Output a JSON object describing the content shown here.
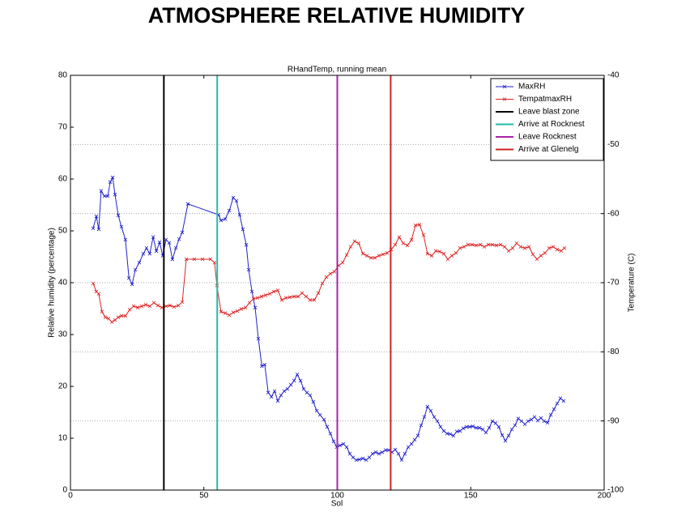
{
  "page_title": "ATMOSPHERE RELATIVE HUMIDITY",
  "chart_data": {
    "type": "line",
    "title": "RHandTemp, running mean",
    "x_label": "Sol",
    "y_label": "Relative humidity (percentage)",
    "y2_label": "Temperature (C)",
    "xlim": [
      0,
      200
    ],
    "xticks": [
      0,
      50,
      100,
      150,
      200
    ],
    "ylim": [
      0,
      80
    ],
    "yticks": [
      0,
      10,
      20,
      30,
      40,
      50,
      60,
      70,
      80
    ],
    "y2lim": [
      -100,
      -40
    ],
    "y2ticks": [
      -100,
      -90,
      -80,
      -70,
      -60,
      -50,
      -40
    ],
    "grid": "y2",
    "legend": "upper right",
    "series": [
      {
        "name": "MaxRH",
        "color": "#2222cc",
        "x": [
          8.5,
          9.7,
          10.6,
          11.5,
          12.7,
          14,
          14.9,
          15.8,
          16.7,
          17.9,
          19.1,
          20.6,
          21.9,
          23.1,
          24.3,
          25.8,
          27.3,
          28.5,
          29.7,
          31,
          32.2,
          33.4,
          34.6,
          35.8,
          37,
          38.2,
          39.5,
          40.7,
          41.9,
          44,
          55.5,
          56.4,
          58,
          59.5,
          61,
          62.2,
          63.4,
          64.6,
          65.9,
          66.8,
          68,
          69.2,
          70.4,
          71.7,
          72.8,
          74.1,
          75.3,
          76.5,
          77.7,
          78.9,
          80.1,
          81.3,
          82.6,
          83.8,
          85,
          86.2,
          87.4,
          88.6,
          89.8,
          91,
          92.3,
          93.5,
          95,
          96.2,
          97.4,
          98.6,
          99.8,
          101,
          102.3,
          103.5,
          104.7,
          105.9,
          107.1,
          108.3,
          109.6,
          110.8,
          112,
          113.2,
          114.4,
          115.6,
          116.8,
          118.1,
          119.3,
          120.5,
          121.7,
          122.9,
          124.1,
          125.3,
          126.6,
          127.8,
          129,
          130.2,
          131.4,
          132.6,
          133.8,
          135,
          136.3,
          137.5,
          138.7,
          139.9,
          141.1,
          142.3,
          143.5,
          144.8,
          146,
          147.2,
          148.4,
          149.6,
          150.8,
          152,
          153.3,
          154.5,
          155.7,
          156.9,
          158.1,
          159.3,
          160.5,
          161.8,
          163,
          164.2,
          165.4,
          166.6,
          167.8,
          169,
          170.3,
          171.5,
          172.7,
          173.9,
          175.1,
          176.3,
          177.5,
          178.8,
          180,
          181.2,
          182.4,
          183.6,
          184.8
        ],
        "values": [
          50.5,
          52.8,
          50.3,
          57.7,
          56.7,
          56.7,
          59.4,
          60.3,
          57,
          53,
          50.8,
          48.3,
          40.9,
          39.7,
          42.5,
          43.9,
          45.6,
          46.7,
          45.6,
          48.8,
          46.1,
          47.8,
          45.2,
          48.3,
          47.7,
          44.5,
          46.7,
          48.4,
          49.7,
          55.2,
          53.1,
          52,
          52.3,
          53.9,
          56.4,
          55.8,
          53.1,
          50.3,
          47.3,
          42.5,
          38.3,
          35.2,
          29.2,
          23.9,
          24.2,
          18.8,
          18,
          19.1,
          17.2,
          18.3,
          19.1,
          19.5,
          20.3,
          21.1,
          22.3,
          21.1,
          19.5,
          18.8,
          18.3,
          17,
          15.3,
          14.5,
          13.6,
          12.2,
          10.9,
          9.4,
          8.3,
          8.6,
          8.9,
          8.3,
          7,
          6.3,
          5.8,
          5.9,
          6.1,
          5.8,
          6.3,
          7,
          7.3,
          7,
          7.3,
          7.7,
          7.7,
          7.3,
          7.8,
          7,
          5.8,
          7,
          8.3,
          8.9,
          9.7,
          10.5,
          12.5,
          14.1,
          16.1,
          15.3,
          14.1,
          13.3,
          12.2,
          11.4,
          10.9,
          10.8,
          10.5,
          11.3,
          11.4,
          11.9,
          12.2,
          12.2,
          12.3,
          12,
          12,
          11.7,
          11.1,
          12,
          13.3,
          12.9,
          12.2,
          10.6,
          9.5,
          10.5,
          11.7,
          12.5,
          13.8,
          13.3,
          12.7,
          13.3,
          13.6,
          14.1,
          13.4,
          13.9,
          13.3,
          13,
          14.5,
          15.6,
          16.7,
          17.7,
          17.2
        ]
      },
      {
        "name": "TempatmaxRH",
        "color": "#dd2222",
        "axis": "y2",
        "x": [
          8.5,
          9.7,
          10.6,
          11.8,
          13.1,
          14.3,
          15.5,
          16.7,
          17.9,
          19.1,
          20.6,
          22.2,
          23.7,
          25.2,
          26.7,
          28.2,
          29.7,
          31.3,
          32.8,
          34.3,
          35.8,
          37.3,
          38.8,
          40.4,
          41.9,
          43.4,
          46.4,
          49.5,
          52.5,
          54,
          54.9,
          56.4,
          58,
          59.5,
          61,
          62.5,
          64,
          65.6,
          67.1,
          68.6,
          70.1,
          71.6,
          73.1,
          74.7,
          76.2,
          77.7,
          79.2,
          80.7,
          82.2,
          83.8,
          85.3,
          86.8,
          88.3,
          89.8,
          91.4,
          92.9,
          94.4,
          95.9,
          97.4,
          98.9,
          100.5,
          102,
          103.5,
          105,
          106.5,
          108,
          109.6,
          111.1,
          112.6,
          114.1,
          115.6,
          117.1,
          118.7,
          120.2,
          121.7,
          123.2,
          124.7,
          126.3,
          127.8,
          129.3,
          130.8,
          132.3,
          133.8,
          135.4,
          136.9,
          138.4,
          139.9,
          141.4,
          142.9,
          144.5,
          146,
          147.5,
          149,
          150.5,
          152,
          153.6,
          155.1,
          156.6,
          158.1,
          159.6,
          161.2,
          162.7,
          164.2,
          165.7,
          167.2,
          168.7,
          170.3,
          171.8,
          173.3,
          174.8,
          176.3,
          177.8,
          179.4,
          180.9,
          182.4,
          183.9,
          185.1
        ],
        "values": [
          -70.1,
          -71.3,
          -71.6,
          -74.2,
          -75.0,
          -75.2,
          -75.7,
          -75.4,
          -75.0,
          -74.8,
          -74.8,
          -73.9,
          -73.4,
          -73.6,
          -73.4,
          -73.2,
          -73.4,
          -72.9,
          -73.3,
          -73.6,
          -73.4,
          -73.3,
          -73.5,
          -73.3,
          -72.8,
          -66.6,
          -66.6,
          -66.6,
          -66.6,
          -67.1,
          -70.4,
          -74.2,
          -74.4,
          -74.7,
          -74.3,
          -74.1,
          -73.8,
          -73.6,
          -72.9,
          -72.3,
          -72.2,
          -72.0,
          -71.8,
          -71.6,
          -71.3,
          -71.1,
          -72.5,
          -72.2,
          -72.1,
          -72.0,
          -72.0,
          -71.5,
          -72.0,
          -72.5,
          -72.5,
          -71.5,
          -70.1,
          -69.2,
          -68.7,
          -68.4,
          -67.5,
          -67.1,
          -66.0,
          -64.8,
          -64.0,
          -64.3,
          -65.8,
          -66.1,
          -66.4,
          -66.4,
          -66.1,
          -65.9,
          -65.7,
          -65.2,
          -64.5,
          -63.4,
          -64.3,
          -64.6,
          -63.8,
          -61.7,
          -61.6,
          -63.1,
          -65.8,
          -66.1,
          -65.4,
          -65.5,
          -65.8,
          -66.6,
          -66.1,
          -65.7,
          -65.0,
          -64.8,
          -64.5,
          -64.5,
          -64.6,
          -64.5,
          -64.8,
          -64.5,
          -64.5,
          -64.6,
          -64.5,
          -64.8,
          -65.4,
          -65.0,
          -64.3,
          -64.8,
          -65.0,
          -64.8,
          -65.9,
          -66.6,
          -66.1,
          -65.7,
          -65.0,
          -64.8,
          -65.2,
          -65.4,
          -65.0
        ]
      }
    ],
    "vlines": [
      {
        "name": "Leave blast zone",
        "color": "#000000",
        "x": 35
      },
      {
        "name": "Arrive at Rocknest",
        "color": "#22bbaa",
        "x": 55
      },
      {
        "name": "Leave Rocknest",
        "color": "#aa22aa",
        "x": 100
      },
      {
        "name": "Arrive at Glenelg",
        "color": "#cc2222",
        "x": 120
      }
    ]
  }
}
